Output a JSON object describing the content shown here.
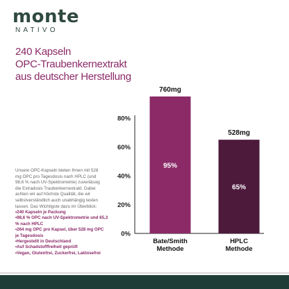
{
  "brand": {
    "name": "monte",
    "sub": "NATIVO"
  },
  "headline": [
    "240 Kapseln",
    "OPC-Traubenkernextrakt",
    "aus deutscher Herstellung"
  ],
  "description": "Unsere OPC-Kapseln bieten Ihnen mit 528 mg OPC pro Tagesdosis nach HPLC (und 98,6 % nach UV-Spektrometrie) zuverlässig die Extradosis Traubenkernextrakt. Dabei achten wir auf höchste Qualität, die wir selbstverständlich auch unabhängig testen lassen. Das Wichtigste dazu im Überblick:",
  "bullets": [
    "240 Kapseln je Packung",
    "98,6 % OPC nach UV-Spektrometrie und 65,3 % nach HPLC",
    "264 mg OPC pro Kapsel, über 528 mg OPC je Tagesdosis",
    "Hergestellt in Deutschland",
    "Auf Schadstofffreiheit geprüft",
    "Vegan, Glutenfrei, Zuckerfrei, Laktosefrei"
  ],
  "chart_data": {
    "type": "bar",
    "categories": [
      "Bate/Smith Methode",
      "HPLC Methode"
    ],
    "values": [
      95,
      65
    ],
    "value_labels": [
      "95%",
      "65%"
    ],
    "top_labels": [
      "760mg",
      "528mg"
    ],
    "colors": [
      "#8b2a67",
      "#4d1a3c"
    ],
    "ylim": [
      0,
      80
    ],
    "yticks": [
      0,
      20,
      40,
      60,
      80
    ],
    "ytick_labels": [
      "0%",
      "20%",
      "40%",
      "60%",
      "80%"
    ],
    "grid": false
  }
}
